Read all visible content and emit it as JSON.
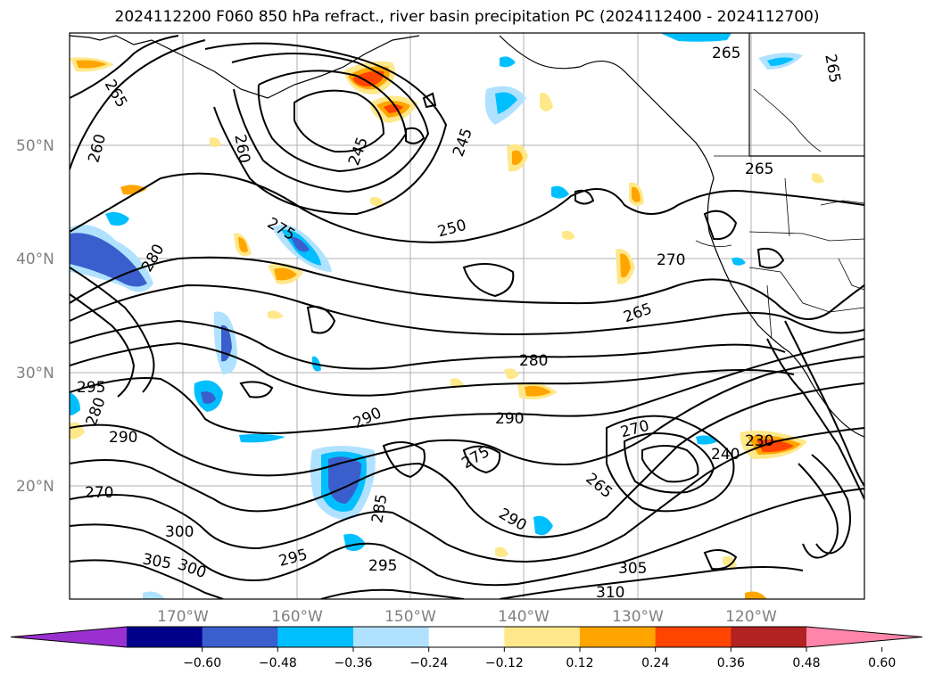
{
  "title": "2024112200 F060 850 hPa refract., river basin precipitation PC (2024112400 - 2024112700)",
  "lat_labels": [
    "50°N",
    "40°N",
    "30°N",
    "20°N"
  ],
  "lon_labels": [
    "170°W",
    "160°W",
    "150°W",
    "140°W",
    "130°W",
    "120°W"
  ],
  "colorbar": {
    "ticks": [
      "−0.60",
      "−0.48",
      "−0.36",
      "−0.24",
      "−0.12",
      "0.12",
      "0.24",
      "0.36",
      "0.48",
      "0.60"
    ],
    "colors": [
      "#9b30d0",
      "#00008b",
      "#3a5fcd",
      "#00bfff",
      "#b0e2ff",
      "#ffffff",
      "#ffe88a",
      "#ffa500",
      "#ff4500",
      "#b22222",
      "#ff86aa"
    ]
  },
  "contour_labels": [
    "245",
    "245",
    "250",
    "260",
    "265",
    "265",
    "265",
    "265",
    "270",
    "270",
    "275",
    "280",
    "280",
    "290",
    "290",
    "290",
    "290",
    "295",
    "295",
    "295",
    "300",
    "300",
    "305",
    "305",
    "310",
    "275",
    "285",
    "240",
    "230",
    "265",
    "270",
    "260",
    "280",
    "265"
  ]
}
